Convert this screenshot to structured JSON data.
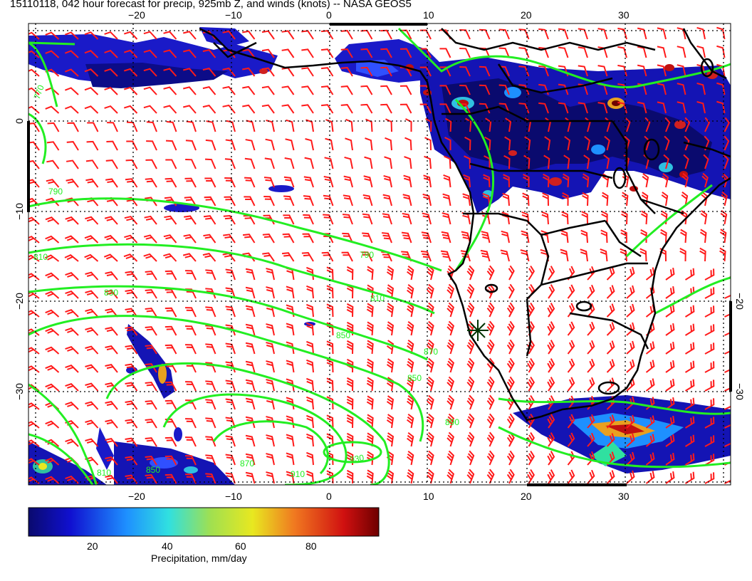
{
  "title": "15110118, 042 hour forecast for precip, 925mb Z, and winds (knots) -- NASA GEOS5",
  "map": {
    "lon_range": [
      -30,
      40
    ],
    "lat_range": [
      -40,
      10
    ],
    "lon_ticks": [
      "−20",
      "−10",
      "0",
      "10",
      "20",
      "30"
    ],
    "lat_ticks": [
      "0",
      "−10",
      "−20",
      "−30"
    ],
    "right_lat_ticks": [
      "−20",
      "−30"
    ],
    "contour_color": "#22ee22",
    "barb_color": "#ff1a1a",
    "coast_color": "#000000",
    "contour_labels": [
      "770",
      "790",
      "790",
      "810",
      "830",
      "810",
      "850",
      "870",
      "850",
      "890",
      "930",
      "910",
      "810",
      "850",
      "870"
    ],
    "high_marker": "+"
  },
  "colorbar": {
    "label": "Precipitation, mm/day",
    "ticks": [
      "20",
      "40",
      "60",
      "80"
    ],
    "colors": [
      "#0a0a6e",
      "#1010d0",
      "#1e90ff",
      "#30e0e0",
      "#a0e050",
      "#e8e820",
      "#f07820",
      "#d01010",
      "#6e0000"
    ]
  }
}
